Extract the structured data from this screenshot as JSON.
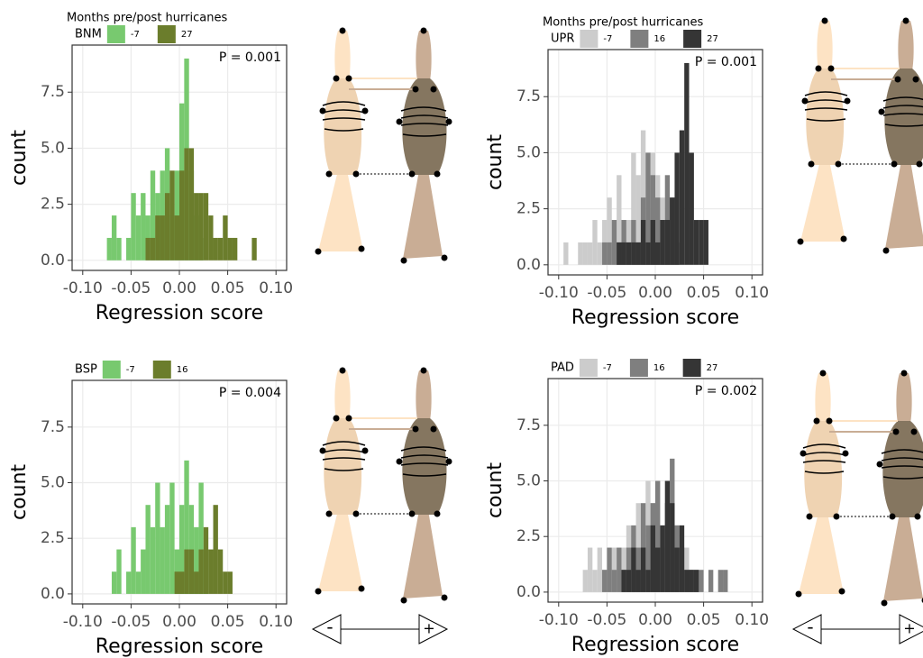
{
  "chart_data": [
    {
      "type": "histogram",
      "legend_title": "Months pre/post hurricanes",
      "legend_label": "BNM",
      "annotation": "P = 0.001",
      "xlabel": "Regression score",
      "ylabel": "count",
      "grid": true,
      "xlim": [
        -0.111,
        0.111
      ],
      "ylim": [
        -0.45,
        9.6
      ],
      "xticks": [
        {
          "value": -0.1,
          "label": "-0.10"
        },
        -0.05,
        {
          "value": 0,
          "label": "0.00"
        },
        0.05,
        {
          "value": 0.1,
          "label": "0.10"
        }
      ],
      "yticks": [
        {
          "value": 0,
          "label": "0.0"
        },
        2.5,
        {
          "value": 5,
          "label": "5.0"
        },
        7.5
      ],
      "bins": [
        -0.095,
        -0.09,
        -0.085,
        -0.08,
        -0.075,
        -0.07,
        -0.065,
        -0.06,
        -0.055,
        -0.05,
        -0.045,
        -0.04,
        -0.035,
        -0.03,
        -0.025,
        -0.02,
        -0.015,
        -0.01,
        -0.005,
        0,
        0.005,
        0.01,
        0.015,
        0.02,
        0.025,
        0.03,
        0.035,
        0.04,
        0.045,
        0.05,
        0.055,
        0.06,
        0.065,
        0.07,
        0.075,
        0.08,
        0.085,
        0.09
      ],
      "series": [
        {
          "name": "-7",
          "color": "#78c96f",
          "values": [
            0,
            0,
            0,
            0,
            1,
            2,
            1,
            0,
            1,
            3,
            2,
            3,
            2,
            4,
            3,
            4,
            5,
            2,
            4,
            7,
            9,
            4,
            2,
            1,
            0,
            0,
            0,
            0,
            0,
            0,
            0,
            0,
            0,
            0,
            0,
            0,
            0
          ]
        },
        {
          "name": "27",
          "color": "#6b7d2c",
          "values": [
            0,
            0,
            0,
            0,
            0,
            0,
            0,
            0,
            0,
            0,
            0,
            0,
            1,
            1,
            2,
            2,
            3,
            4,
            2,
            4,
            5,
            5,
            3,
            3,
            3,
            2,
            1,
            1,
            2,
            1,
            1,
            0,
            0,
            0,
            1,
            0,
            0
          ]
        }
      ]
    },
    {
      "type": "histogram",
      "legend_title": "Months pre/post hurricanes",
      "legend_label": "UPR",
      "annotation": "P = 0.001",
      "xlabel": "Regression score",
      "ylabel": "count",
      "grid": true,
      "xlim": [
        -0.111,
        0.111
      ],
      "ylim": [
        -0.45,
        9.6
      ],
      "xticks": [
        {
          "value": -0.1,
          "label": "-0.10"
        },
        -0.05,
        {
          "value": 0,
          "label": "0.00"
        },
        0.05,
        {
          "value": 0.1,
          "label": "0.10"
        }
      ],
      "yticks": [
        {
          "value": 0,
          "label": "0.0"
        },
        2.5,
        {
          "value": 5,
          "label": "5.0"
        },
        7.5
      ],
      "bins": [
        -0.095,
        -0.09,
        -0.085,
        -0.08,
        -0.075,
        -0.07,
        -0.065,
        -0.06,
        -0.055,
        -0.05,
        -0.045,
        -0.04,
        -0.035,
        -0.03,
        -0.025,
        -0.02,
        -0.015,
        -0.01,
        -0.005,
        0,
        0.005,
        0.01,
        0.015,
        0.02,
        0.025,
        0.03,
        0.035,
        0.04,
        0.045,
        0.05,
        0.055,
        0.06,
        0.065,
        0.07,
        0.075,
        0.08,
        0.085,
        0.09
      ],
      "series": [
        {
          "name": "-7",
          "color": "#cccccc",
          "values": [
            1,
            0,
            0,
            1,
            1,
            1,
            2,
            1,
            2,
            3,
            2,
            4,
            2,
            2,
            5,
            4,
            6,
            3,
            5,
            4,
            3,
            2,
            1,
            0,
            0,
            0,
            0,
            0,
            0,
            0,
            0,
            0,
            0,
            0,
            0,
            0,
            0
          ]
        },
        {
          "name": "16",
          "color": "#7f7f7f",
          "values": [
            0,
            0,
            0,
            0,
            0,
            0,
            0,
            0,
            1,
            1,
            2,
            1,
            2,
            1,
            2,
            1,
            3,
            5,
            4,
            3,
            2,
            4,
            3,
            1,
            0,
            0,
            0,
            0,
            0,
            0,
            0,
            0,
            0,
            0,
            0,
            0,
            0
          ]
        },
        {
          "name": "27",
          "color": "#353535",
          "values": [
            0,
            0,
            0,
            0,
            0,
            0,
            0,
            0,
            0,
            0,
            0,
            1,
            1,
            1,
            1,
            1,
            2,
            1,
            2,
            1,
            2,
            2,
            3,
            5,
            6,
            9,
            5,
            2,
            2,
            2,
            0,
            0,
            0,
            0,
            0,
            0,
            0
          ]
        }
      ]
    },
    {
      "type": "histogram",
      "legend_label": "BSP",
      "annotation": "P = 0.004",
      "xlabel": "Regression score",
      "ylabel": "count",
      "grid": true,
      "xlim": [
        -0.111,
        0.111
      ],
      "ylim": [
        -0.45,
        9.6
      ],
      "xticks": [
        {
          "value": -0.1,
          "label": "-0.10"
        },
        -0.05,
        {
          "value": 0,
          "label": "0.00"
        },
        0.05,
        {
          "value": 0.1,
          "label": "0.10"
        }
      ],
      "yticks": [
        {
          "value": 0,
          "label": "0.0"
        },
        2.5,
        {
          "value": 5,
          "label": "5.0"
        },
        7.5
      ],
      "bins": [
        -0.095,
        -0.09,
        -0.085,
        -0.08,
        -0.075,
        -0.07,
        -0.065,
        -0.06,
        -0.055,
        -0.05,
        -0.045,
        -0.04,
        -0.035,
        -0.03,
        -0.025,
        -0.02,
        -0.015,
        -0.01,
        -0.005,
        0,
        0.005,
        0.01,
        0.015,
        0.02,
        0.025,
        0.03,
        0.035,
        0.04,
        0.045,
        0.05,
        0.055,
        0.06,
        0.065,
        0.07,
        0.075,
        0.08,
        0.085,
        0.09
      ],
      "series": [
        {
          "name": "-7",
          "color": "#78c96f",
          "values": [
            0,
            0,
            0,
            0,
            0,
            1,
            2,
            0,
            1,
            3,
            1,
            2,
            4,
            3,
            5,
            3,
            4,
            5,
            2,
            4,
            6,
            4,
            3,
            5,
            2,
            0,
            0,
            0,
            0,
            0,
            0,
            0,
            0,
            0,
            0,
            0,
            0
          ]
        },
        {
          "name": "16",
          "color": "#6b7d2c",
          "values": [
            0,
            0,
            0,
            0,
            0,
            0,
            0,
            0,
            0,
            0,
            0,
            0,
            0,
            0,
            0,
            0,
            0,
            0,
            1,
            1,
            2,
            2,
            1,
            2,
            3,
            2,
            4,
            2,
            1,
            1,
            0,
            0,
            0,
            0,
            0,
            0,
            0
          ]
        }
      ]
    },
    {
      "type": "histogram",
      "legend_label": "PAD",
      "annotation": "P = 0.002",
      "xlabel": "Regression score",
      "ylabel": "count",
      "grid": true,
      "xlim": [
        -0.111,
        0.111
      ],
      "ylim": [
        -0.45,
        9.6
      ],
      "xticks": [
        {
          "value": -0.1,
          "label": "-0.10"
        },
        -0.05,
        {
          "value": 0,
          "label": "0.00"
        },
        0.05,
        {
          "value": 0.1,
          "label": "0.10"
        }
      ],
      "yticks": [
        {
          "value": 0,
          "label": "0.0"
        },
        2.5,
        {
          "value": 5,
          "label": "5.0"
        },
        7.5
      ],
      "bins": [
        -0.095,
        -0.09,
        -0.085,
        -0.08,
        -0.075,
        -0.07,
        -0.065,
        -0.06,
        -0.055,
        -0.05,
        -0.045,
        -0.04,
        -0.035,
        -0.03,
        -0.025,
        -0.02,
        -0.015,
        -0.01,
        -0.005,
        0,
        0.005,
        0.01,
        0.015,
        0.02,
        0.025,
        0.03,
        0.035,
        0.04,
        0.045,
        0.05,
        0.055,
        0.06,
        0.065,
        0.07,
        0.075,
        0.08,
        0.085,
        0.09
      ],
      "series": [
        {
          "name": "-7",
          "color": "#cccccc",
          "values": [
            0,
            0,
            0,
            0,
            1,
            2,
            1,
            2,
            1,
            1,
            2,
            1,
            2,
            3,
            2,
            4,
            3,
            5,
            4,
            5,
            3,
            4,
            2,
            3,
            1,
            2,
            1,
            0,
            0,
            0,
            0,
            0,
            0,
            0,
            0,
            0,
            0
          ]
        },
        {
          "name": "16",
          "color": "#7f7f7f",
          "values": [
            0,
            0,
            0,
            0,
            0,
            0,
            0,
            0,
            1,
            2,
            1,
            2,
            1,
            2,
            3,
            2,
            4,
            3,
            4,
            5,
            2,
            4,
            6,
            3,
            2,
            1,
            1,
            1,
            1,
            0,
            1,
            0,
            1,
            1,
            0,
            0,
            0
          ]
        },
        {
          "name": "27",
          "color": "#353535",
          "values": [
            0,
            0,
            0,
            0,
            0,
            0,
            0,
            0,
            0,
            0,
            0,
            0,
            1,
            1,
            2,
            1,
            2,
            1,
            3,
            2,
            3,
            5,
            4,
            2,
            3,
            1,
            1,
            1,
            0,
            0,
            0,
            0,
            0,
            0,
            0,
            0,
            0
          ]
        }
      ]
    }
  ],
  "scale": {
    "low": "-",
    "high": "+"
  }
}
